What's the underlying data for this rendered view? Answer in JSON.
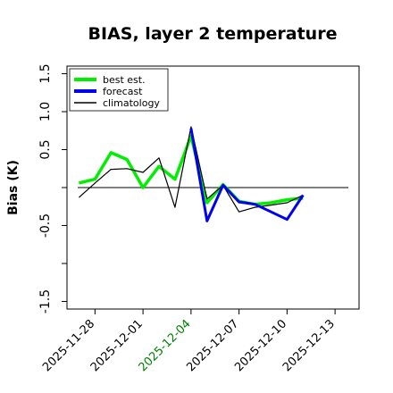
{
  "chart_data": {
    "type": "line",
    "title": "BIAS, layer 2 temperature",
    "ylabel": "Bias (K)",
    "xlabel": "",
    "ylim": [
      -1.6,
      1.6
    ],
    "yticks": [
      -1.5,
      -1.0,
      -0.5,
      0.0,
      0.5,
      1.0,
      1.5
    ],
    "ytick_labels": [
      "-1.5",
      "",
      "-0.5",
      "",
      "0.5",
      "1.0",
      "1.5"
    ],
    "xlim": [
      "2025-11-26T06:00",
      "2025-12-14T12:00"
    ],
    "xticks": [
      "2025-11-28",
      "2025-12-01",
      "2025-12-04",
      "2025-12-07",
      "2025-12-10",
      "2025-12-13"
    ],
    "xtick_label_colors": [
      "#000000",
      "#000000",
      "#008000",
      "#000000",
      "#000000",
      "#000000"
    ],
    "reference_line": 0,
    "grid": false,
    "legend_position": "top-left",
    "series": [
      {
        "name": "best est.",
        "color": "#00ee00",
        "x": [
          "2025-11-27T00:00",
          "2025-11-28T00:00",
          "2025-11-29T00:00",
          "2025-11-30T00:00",
          "2025-12-01T00:00",
          "2025-12-02T00:00",
          "2025-12-03T00:00",
          "2025-12-04T00:00",
          "2025-12-05T00:00",
          "2025-12-06T00:00",
          "2025-12-07T00:00",
          "2025-12-08T00:00",
          "2025-12-09T00:00",
          "2025-12-10T00:00",
          "2025-12-11T00:00"
        ],
        "values": [
          0.06,
          0.11,
          0.46,
          0.37,
          0.0,
          0.28,
          0.11,
          0.68,
          -0.2,
          0.04,
          -0.18,
          -0.22,
          -0.2,
          -0.16,
          -0.14
        ]
      },
      {
        "name": "forecast",
        "color": "#0000ee",
        "x": [
          "2025-12-04T00:00",
          "2025-12-05T00:00",
          "2025-12-06T00:00",
          "2025-12-07T00:00",
          "2025-12-08T00:00",
          "2025-12-10T00:00",
          "2025-12-11T00:00"
        ],
        "values": [
          0.78,
          -0.44,
          0.03,
          -0.19,
          -0.22,
          -0.42,
          -0.1
        ]
      },
      {
        "name": "climatology",
        "color": "#000000",
        "x": [
          "2025-11-27T00:00",
          "2025-11-28T00:00",
          "2025-11-29T00:00",
          "2025-11-30T00:00",
          "2025-12-01T00:00",
          "2025-12-02T00:00",
          "2025-12-03T00:00",
          "2025-12-04T00:00",
          "2025-12-05T00:00",
          "2025-12-06T00:00",
          "2025-12-07T00:00",
          "2025-12-08T00:00",
          "2025-12-09T00:00",
          "2025-12-10T00:00",
          "2025-12-11T00:00"
        ],
        "values": [
          -0.13,
          0.06,
          0.24,
          0.25,
          0.2,
          0.39,
          -0.26,
          0.8,
          -0.15,
          0.03,
          -0.32,
          -0.26,
          -0.23,
          -0.2,
          -0.1
        ]
      }
    ]
  }
}
